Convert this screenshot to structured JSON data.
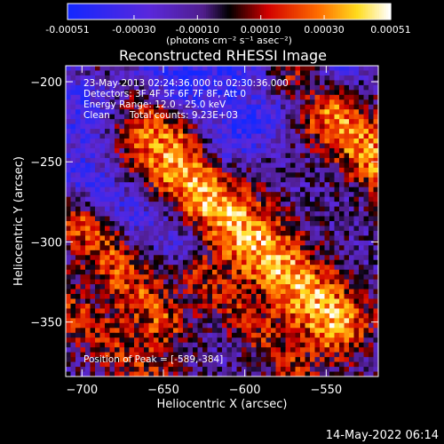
{
  "colorbar": {
    "ticks": [
      "-0.00051",
      "-0.00030",
      "-0.00010",
      "0.00010",
      "0.00030",
      "0.00051"
    ],
    "tick_values": [
      -0.00051,
      -0.0003,
      -0.0001,
      0.0001,
      0.0003,
      0.00051
    ],
    "min": -0.00051,
    "max": 0.00051,
    "units_label": "(photons cm⁻² s⁻¹ asec⁻²)"
  },
  "chart_data": {
    "type": "heatmap",
    "title": "Reconstructed RHESSI Image",
    "xlabel": "Heliocentric X (arcsec)",
    "ylabel": "Heliocentric Y (arcsec)",
    "xlim": [
      -710,
      -518
    ],
    "ylim": [
      -384,
      -190
    ],
    "xticks": [
      -700,
      -650,
      -600,
      -550
    ],
    "xtick_labels": [
      "−700",
      "−650",
      "−600",
      "−550"
    ],
    "yticks": [
      -200,
      -250,
      -300,
      -350
    ],
    "ytick_labels": [
      "−200",
      "−250",
      "−300",
      "−350"
    ],
    "grid": false,
    "peak": {
      "x": -589,
      "y": -384
    },
    "ridges": [
      {
        "x1": -665,
        "y1": -230,
        "x2": -545,
        "y2": -350,
        "width": 16,
        "amp": 0.00051
      },
      {
        "x1": -570,
        "y1": -200,
        "x2": -505,
        "y2": -260,
        "width": 14,
        "amp": 0.00045
      },
      {
        "x1": -700,
        "y1": -290,
        "x2": -650,
        "y2": -350,
        "width": 12,
        "amp": 0.00033
      },
      {
        "x1": -710,
        "y1": -340,
        "x2": -640,
        "y2": -400,
        "width": 12,
        "amp": 0.00025
      },
      {
        "x1": -690,
        "y1": -190,
        "x2": -640,
        "y2": -230,
        "width": 8,
        "amp": 0.00016
      },
      {
        "x1": -630,
        "y1": -320,
        "x2": -570,
        "y2": -380,
        "width": 10,
        "amp": 0.00022
      }
    ],
    "troughs": [
      {
        "x1": -690,
        "y1": -220,
        "x2": -600,
        "y2": -190,
        "width": 22,
        "amp": -0.00028
      },
      {
        "x1": -700,
        "y1": -260,
        "x2": -640,
        "y2": -300,
        "width": 10,
        "amp": -0.0002
      },
      {
        "x1": -610,
        "y1": -240,
        "x2": -540,
        "y2": -190,
        "width": 10,
        "amp": -0.00024
      }
    ],
    "baseline": -0.00013,
    "noise_amp": 0.00016
  },
  "info": {
    "time_range": "23-May-2013 02:24:36.000 to 02:30:36.000",
    "detectors": "Detectors: 3F 4F 5F 6F 7F 8F, Att 0",
    "energy": "Energy Range: 12.0 - 25.0 keV",
    "algorithm": "Clean",
    "counts": "Total counts: 9.23E+03",
    "peak_text": "Position of Peak = [-589,-384]"
  },
  "footer_date": "14-May-2022 06:14"
}
